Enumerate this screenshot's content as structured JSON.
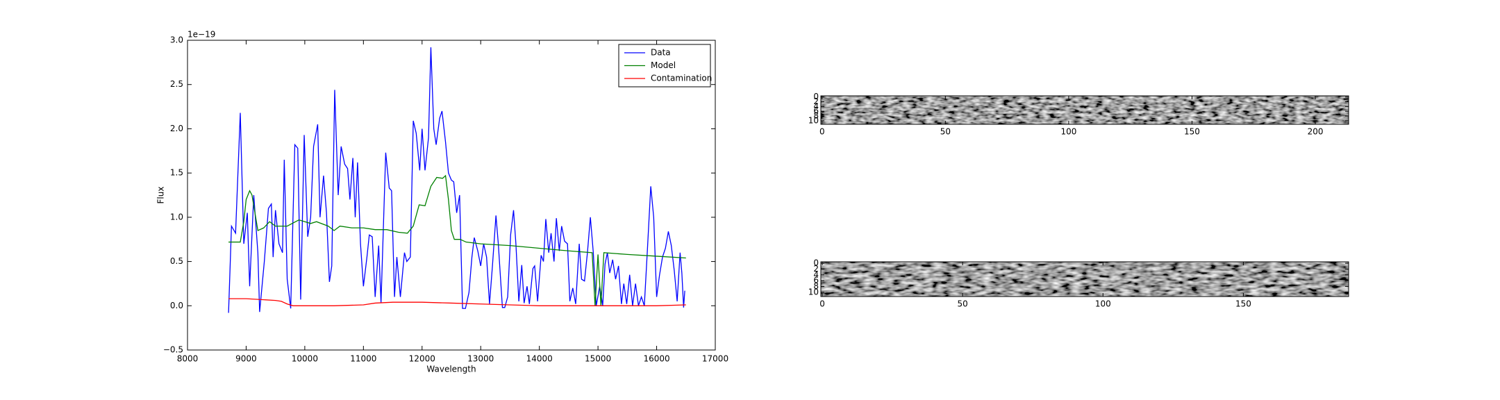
{
  "chart_data": [
    {
      "type": "line",
      "x_label": "Wavelength",
      "y_label": "Flux",
      "y_offset_text": "1e−19",
      "xlim": [
        8000,
        17000
      ],
      "xticks": [
        8000,
        9000,
        10000,
        11000,
        12000,
        13000,
        14000,
        15000,
        16000,
        17000
      ],
      "ylim": [
        -0.5,
        3.0
      ],
      "yticks": [
        {
          "value": -0.5,
          "label": "−0.5"
        },
        {
          "value": 0,
          "label": "0.0"
        },
        0.5,
        {
          "value": 1,
          "label": "1.0"
        },
        1.5,
        {
          "value": 2,
          "label": "2.0"
        },
        2.5,
        {
          "value": 3,
          "label": "3.0"
        }
      ],
      "legend": "upper right",
      "series": [
        {
          "name": "Data",
          "color": "#0000ff",
          "x": [
            8700,
            8750,
            8820,
            8900,
            8960,
            9020,
            9060,
            9130,
            9200,
            9230,
            9310,
            9380,
            9430,
            9460,
            9500,
            9560,
            9620,
            9650,
            9700,
            9760,
            9830,
            9880,
            9930,
            9990,
            10050,
            10100,
            10150,
            10220,
            10260,
            10320,
            10370,
            10420,
            10460,
            10510,
            10570,
            10620,
            10680,
            10730,
            10770,
            10820,
            10860,
            10900,
            10950,
            11000,
            11060,
            11100,
            11150,
            11200,
            11260,
            11300,
            11380,
            11440,
            11480,
            11530,
            11570,
            11630,
            11700,
            11740,
            11800,
            11850,
            11900,
            11960,
            12000,
            12050,
            12110,
            12150,
            12200,
            12240,
            12300,
            12340,
            12400,
            12450,
            12500,
            12540,
            12590,
            12640,
            12690,
            12740,
            12800,
            12850,
            12890,
            12950,
            13000,
            13050,
            13100,
            13150,
            13200,
            13260,
            13300,
            13370,
            13410,
            13460,
            13510,
            13560,
            13600,
            13650,
            13700,
            13740,
            13790,
            13830,
            13890,
            13920,
            13970,
            14030,
            14070,
            14110,
            14160,
            14200,
            14250,
            14290,
            14340,
            14380,
            14430,
            14480,
            14520,
            14570,
            14620,
            14680,
            14720,
            14770,
            14820,
            14870,
            14920,
            14970,
            15030,
            15080,
            15120,
            15160,
            15200,
            15250,
            15300,
            15350,
            15400,
            15440,
            15490,
            15540,
            15590,
            15640,
            15690,
            15740,
            15790,
            15840,
            15900,
            15950,
            16000,
            16050,
            16100,
            16150,
            16200,
            16250,
            16300,
            16350,
            16400,
            16430,
            16460,
            16480
          ],
          "values": [
            -0.08,
            0.9,
            0.82,
            2.18,
            0.7,
            1.05,
            0.22,
            1.25,
            0.6,
            -0.07,
            0.5,
            1.1,
            1.15,
            0.55,
            1.08,
            0.7,
            0.6,
            1.65,
            0.3,
            -0.03,
            1.82,
            1.78,
            0.07,
            1.93,
            0.78,
            1.0,
            1.8,
            2.05,
            1.0,
            1.47,
            1.05,
            0.27,
            0.45,
            2.44,
            1.25,
            1.8,
            1.6,
            1.55,
            1.2,
            1.67,
            1.0,
            1.62,
            0.7,
            0.22,
            0.55,
            0.8,
            0.78,
            0.1,
            0.68,
            0.03,
            1.73,
            1.33,
            1.3,
            0.1,
            0.55,
            0.1,
            0.6,
            0.5,
            0.55,
            2.09,
            1.95,
            1.53,
            2.0,
            1.53,
            1.9,
            2.92,
            2.0,
            1.82,
            2.12,
            2.2,
            1.85,
            1.5,
            1.42,
            1.4,
            1.05,
            1.25,
            -0.03,
            -0.03,
            0.15,
            0.55,
            0.77,
            0.62,
            0.45,
            0.7,
            0.55,
            0.02,
            0.45,
            1.02,
            0.7,
            -0.02,
            -0.02,
            0.1,
            0.8,
            1.08,
            0.7,
            0.05,
            0.46,
            0.03,
            0.22,
            0.02,
            0.42,
            0.45,
            0.05,
            0.57,
            0.5,
            0.98,
            0.6,
            0.82,
            0.5,
            0.99,
            0.62,
            0.9,
            0.73,
            0.7,
            0.05,
            0.2,
            0.02,
            0.7,
            0.3,
            0.28,
            0.6,
            1.0,
            0.6,
            0.0,
            0.22,
            0.0,
            0.47,
            0.6,
            0.37,
            0.52,
            0.3,
            0.45,
            0.02,
            0.25,
            0.02,
            0.35,
            0.0,
            0.25,
            0.0,
            0.1,
            0.0,
            0.6,
            1.35,
            1.0,
            0.1,
            0.35,
            0.55,
            0.65,
            0.84,
            0.68,
            0.4,
            0.05,
            0.6,
            0.37,
            -0.02,
            0.17
          ]
        },
        {
          "name": "Model",
          "color": "#008000",
          "x": [
            8700,
            8900,
            8960,
            9000,
            9060,
            9100,
            9200,
            9300,
            9400,
            9500,
            9700,
            9900,
            10100,
            10200,
            10400,
            10500,
            10600,
            10800,
            11000,
            11200,
            11400,
            11600,
            11750,
            11850,
            11950,
            12050,
            12150,
            12250,
            12350,
            12400,
            12450,
            12500,
            12550,
            12650,
            12750,
            13000,
            13500,
            14000,
            14500,
            14900,
            14950,
            15000,
            15050,
            15100,
            15500,
            16000,
            16500
          ],
          "values": [
            0.72,
            0.72,
            0.95,
            1.2,
            1.3,
            1.25,
            0.85,
            0.88,
            0.95,
            0.9,
            0.9,
            0.97,
            0.93,
            0.95,
            0.9,
            0.85,
            0.9,
            0.88,
            0.88,
            0.86,
            0.86,
            0.83,
            0.82,
            0.9,
            1.14,
            1.13,
            1.35,
            1.45,
            1.44,
            1.47,
            1.2,
            0.85,
            0.75,
            0.75,
            0.72,
            0.7,
            0.68,
            0.65,
            0.62,
            0.6,
            0.0,
            0.58,
            0.0,
            0.6,
            0.58,
            0.56,
            0.54
          ]
        },
        {
          "name": "Contamination",
          "color": "#ff0000",
          "x": [
            8700,
            9000,
            9500,
            9600,
            9700,
            9800,
            10000,
            10500,
            11000,
            11200,
            11500,
            12000,
            12500,
            13000,
            14000,
            15000,
            16000,
            16500
          ],
          "values": [
            0.08,
            0.08,
            0.06,
            0.05,
            0.02,
            0.0,
            0.0,
            0.0,
            0.01,
            0.03,
            0.04,
            0.04,
            0.03,
            0.02,
            0.0,
            0.0,
            0.0,
            0.01
          ]
        }
      ]
    },
    {
      "type": "image",
      "origin": "upper",
      "xlim": [
        -0.5,
        213.5
      ],
      "ylim": [
        -0.5,
        11.5
      ],
      "xticks": [
        0,
        50,
        100,
        150,
        200
      ],
      "yticks": [
        0,
        2,
        4,
        6,
        8,
        10
      ]
    },
    {
      "type": "image",
      "origin": "upper",
      "xlim": [
        -0.5,
        187.5
      ],
      "ylim": [
        -0.5,
        11.5
      ],
      "xticks": [
        0,
        50,
        100,
        150
      ],
      "yticks": [
        0,
        2,
        4,
        6,
        8,
        10
      ]
    }
  ]
}
